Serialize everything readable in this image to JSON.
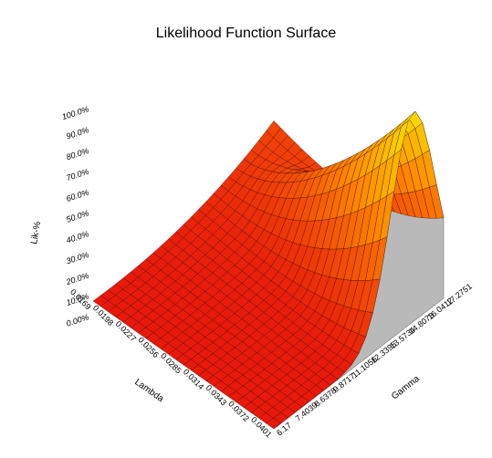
{
  "chart_data": {
    "type": "surface",
    "title": "Likelihood Function Surface",
    "x_axis": {
      "label": "Lambda",
      "ticks": [
        "0.0169",
        "0.0198",
        "0.0227",
        "0.0256",
        "0.0285",
        "0.0314",
        "0.0343",
        "0.0372",
        "0.0401"
      ],
      "range": [
        0.0169,
        0.0401
      ]
    },
    "y_axis": {
      "label": "Gamma",
      "ticks": [
        "6.17",
        "7.4039",
        "8.6378",
        "9.8717",
        "11.1056",
        "12.3395",
        "13.5734",
        "14.8073",
        "16.0412",
        "17.2751"
      ],
      "range": [
        6.17,
        17.2751
      ]
    },
    "z_axis": {
      "label": "Lik-%",
      "ticks": [
        "0.00%",
        "10.0%",
        "20.0%",
        "30.0%",
        "40.0%",
        "50.0%",
        "60.0%",
        "70.0%",
        "80.0%",
        "90.0%",
        "100.0%"
      ],
      "range": [
        0,
        100
      ]
    },
    "surface": {
      "peak": {
        "lambda": 0.0401,
        "gamma": 15.0,
        "likelihood_pct": 100
      },
      "description_values": [
        {
          "lambda": 0.0169,
          "gamma": 6.17,
          "likelihood_pct": 0
        },
        {
          "lambda": 0.0169,
          "gamma": 17.2751,
          "likelihood_pct": 22
        },
        {
          "lambda": 0.0401,
          "gamma": 6.17,
          "likelihood_pct": 0
        },
        {
          "lambda": 0.0401,
          "gamma": 17.2751,
          "likelihood_pct": 58
        }
      ]
    },
    "colors": {
      "low": "#e8190b",
      "mid": "#ff8c00",
      "high": "#f5e600",
      "wall": "#b9b9b9",
      "grid": "#3a0000"
    },
    "grid": true
  }
}
